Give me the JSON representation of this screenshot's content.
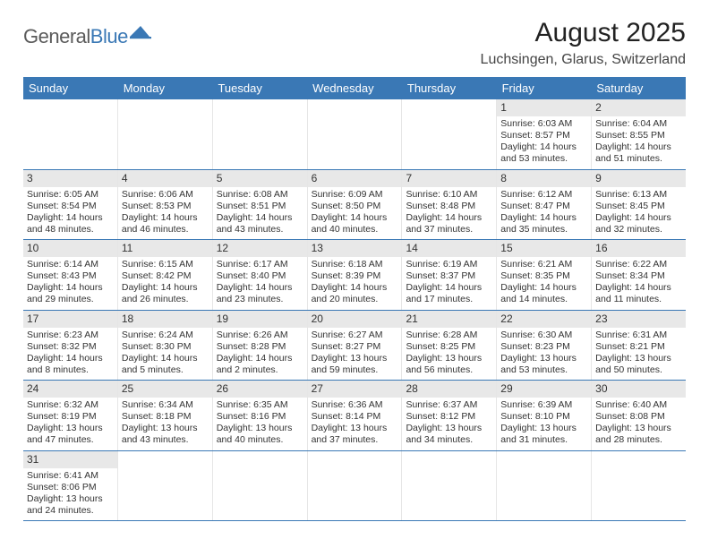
{
  "logo": {
    "part1": "General",
    "part2": "Blue"
  },
  "title": "August 2025",
  "location": "Luchsingen, Glarus, Switzerland",
  "colors": {
    "header_bg": "#3a78b5",
    "header_text": "#ffffff",
    "daynum_bg": "#e8e8e8",
    "row_divider": "#3a78b5",
    "body_text": "#333333",
    "logo_gray": "#5b5b5b",
    "logo_blue": "#3a78b5"
  },
  "day_names": [
    "Sunday",
    "Monday",
    "Tuesday",
    "Wednesday",
    "Thursday",
    "Friday",
    "Saturday"
  ],
  "weeks": [
    [
      null,
      null,
      null,
      null,
      null,
      {
        "n": "1",
        "sr": "Sunrise: 6:03 AM",
        "ss": "Sunset: 8:57 PM",
        "d1": "Daylight: 14 hours",
        "d2": "and 53 minutes."
      },
      {
        "n": "2",
        "sr": "Sunrise: 6:04 AM",
        "ss": "Sunset: 8:55 PM",
        "d1": "Daylight: 14 hours",
        "d2": "and 51 minutes."
      }
    ],
    [
      {
        "n": "3",
        "sr": "Sunrise: 6:05 AM",
        "ss": "Sunset: 8:54 PM",
        "d1": "Daylight: 14 hours",
        "d2": "and 48 minutes."
      },
      {
        "n": "4",
        "sr": "Sunrise: 6:06 AM",
        "ss": "Sunset: 8:53 PM",
        "d1": "Daylight: 14 hours",
        "d2": "and 46 minutes."
      },
      {
        "n": "5",
        "sr": "Sunrise: 6:08 AM",
        "ss": "Sunset: 8:51 PM",
        "d1": "Daylight: 14 hours",
        "d2": "and 43 minutes."
      },
      {
        "n": "6",
        "sr": "Sunrise: 6:09 AM",
        "ss": "Sunset: 8:50 PM",
        "d1": "Daylight: 14 hours",
        "d2": "and 40 minutes."
      },
      {
        "n": "7",
        "sr": "Sunrise: 6:10 AM",
        "ss": "Sunset: 8:48 PM",
        "d1": "Daylight: 14 hours",
        "d2": "and 37 minutes."
      },
      {
        "n": "8",
        "sr": "Sunrise: 6:12 AM",
        "ss": "Sunset: 8:47 PM",
        "d1": "Daylight: 14 hours",
        "d2": "and 35 minutes."
      },
      {
        "n": "9",
        "sr": "Sunrise: 6:13 AM",
        "ss": "Sunset: 8:45 PM",
        "d1": "Daylight: 14 hours",
        "d2": "and 32 minutes."
      }
    ],
    [
      {
        "n": "10",
        "sr": "Sunrise: 6:14 AM",
        "ss": "Sunset: 8:43 PM",
        "d1": "Daylight: 14 hours",
        "d2": "and 29 minutes."
      },
      {
        "n": "11",
        "sr": "Sunrise: 6:15 AM",
        "ss": "Sunset: 8:42 PM",
        "d1": "Daylight: 14 hours",
        "d2": "and 26 minutes."
      },
      {
        "n": "12",
        "sr": "Sunrise: 6:17 AM",
        "ss": "Sunset: 8:40 PM",
        "d1": "Daylight: 14 hours",
        "d2": "and 23 minutes."
      },
      {
        "n": "13",
        "sr": "Sunrise: 6:18 AM",
        "ss": "Sunset: 8:39 PM",
        "d1": "Daylight: 14 hours",
        "d2": "and 20 minutes."
      },
      {
        "n": "14",
        "sr": "Sunrise: 6:19 AM",
        "ss": "Sunset: 8:37 PM",
        "d1": "Daylight: 14 hours",
        "d2": "and 17 minutes."
      },
      {
        "n": "15",
        "sr": "Sunrise: 6:21 AM",
        "ss": "Sunset: 8:35 PM",
        "d1": "Daylight: 14 hours",
        "d2": "and 14 minutes."
      },
      {
        "n": "16",
        "sr": "Sunrise: 6:22 AM",
        "ss": "Sunset: 8:34 PM",
        "d1": "Daylight: 14 hours",
        "d2": "and 11 minutes."
      }
    ],
    [
      {
        "n": "17",
        "sr": "Sunrise: 6:23 AM",
        "ss": "Sunset: 8:32 PM",
        "d1": "Daylight: 14 hours",
        "d2": "and 8 minutes."
      },
      {
        "n": "18",
        "sr": "Sunrise: 6:24 AM",
        "ss": "Sunset: 8:30 PM",
        "d1": "Daylight: 14 hours",
        "d2": "and 5 minutes."
      },
      {
        "n": "19",
        "sr": "Sunrise: 6:26 AM",
        "ss": "Sunset: 8:28 PM",
        "d1": "Daylight: 14 hours",
        "d2": "and 2 minutes."
      },
      {
        "n": "20",
        "sr": "Sunrise: 6:27 AM",
        "ss": "Sunset: 8:27 PM",
        "d1": "Daylight: 13 hours",
        "d2": "and 59 minutes."
      },
      {
        "n": "21",
        "sr": "Sunrise: 6:28 AM",
        "ss": "Sunset: 8:25 PM",
        "d1": "Daylight: 13 hours",
        "d2": "and 56 minutes."
      },
      {
        "n": "22",
        "sr": "Sunrise: 6:30 AM",
        "ss": "Sunset: 8:23 PM",
        "d1": "Daylight: 13 hours",
        "d2": "and 53 minutes."
      },
      {
        "n": "23",
        "sr": "Sunrise: 6:31 AM",
        "ss": "Sunset: 8:21 PM",
        "d1": "Daylight: 13 hours",
        "d2": "and 50 minutes."
      }
    ],
    [
      {
        "n": "24",
        "sr": "Sunrise: 6:32 AM",
        "ss": "Sunset: 8:19 PM",
        "d1": "Daylight: 13 hours",
        "d2": "and 47 minutes."
      },
      {
        "n": "25",
        "sr": "Sunrise: 6:34 AM",
        "ss": "Sunset: 8:18 PM",
        "d1": "Daylight: 13 hours",
        "d2": "and 43 minutes."
      },
      {
        "n": "26",
        "sr": "Sunrise: 6:35 AM",
        "ss": "Sunset: 8:16 PM",
        "d1": "Daylight: 13 hours",
        "d2": "and 40 minutes."
      },
      {
        "n": "27",
        "sr": "Sunrise: 6:36 AM",
        "ss": "Sunset: 8:14 PM",
        "d1": "Daylight: 13 hours",
        "d2": "and 37 minutes."
      },
      {
        "n": "28",
        "sr": "Sunrise: 6:37 AM",
        "ss": "Sunset: 8:12 PM",
        "d1": "Daylight: 13 hours",
        "d2": "and 34 minutes."
      },
      {
        "n": "29",
        "sr": "Sunrise: 6:39 AM",
        "ss": "Sunset: 8:10 PM",
        "d1": "Daylight: 13 hours",
        "d2": "and 31 minutes."
      },
      {
        "n": "30",
        "sr": "Sunrise: 6:40 AM",
        "ss": "Sunset: 8:08 PM",
        "d1": "Daylight: 13 hours",
        "d2": "and 28 minutes."
      }
    ],
    [
      {
        "n": "31",
        "sr": "Sunrise: 6:41 AM",
        "ss": "Sunset: 8:06 PM",
        "d1": "Daylight: 13 hours",
        "d2": "and 24 minutes."
      },
      null,
      null,
      null,
      null,
      null,
      null
    ]
  ]
}
